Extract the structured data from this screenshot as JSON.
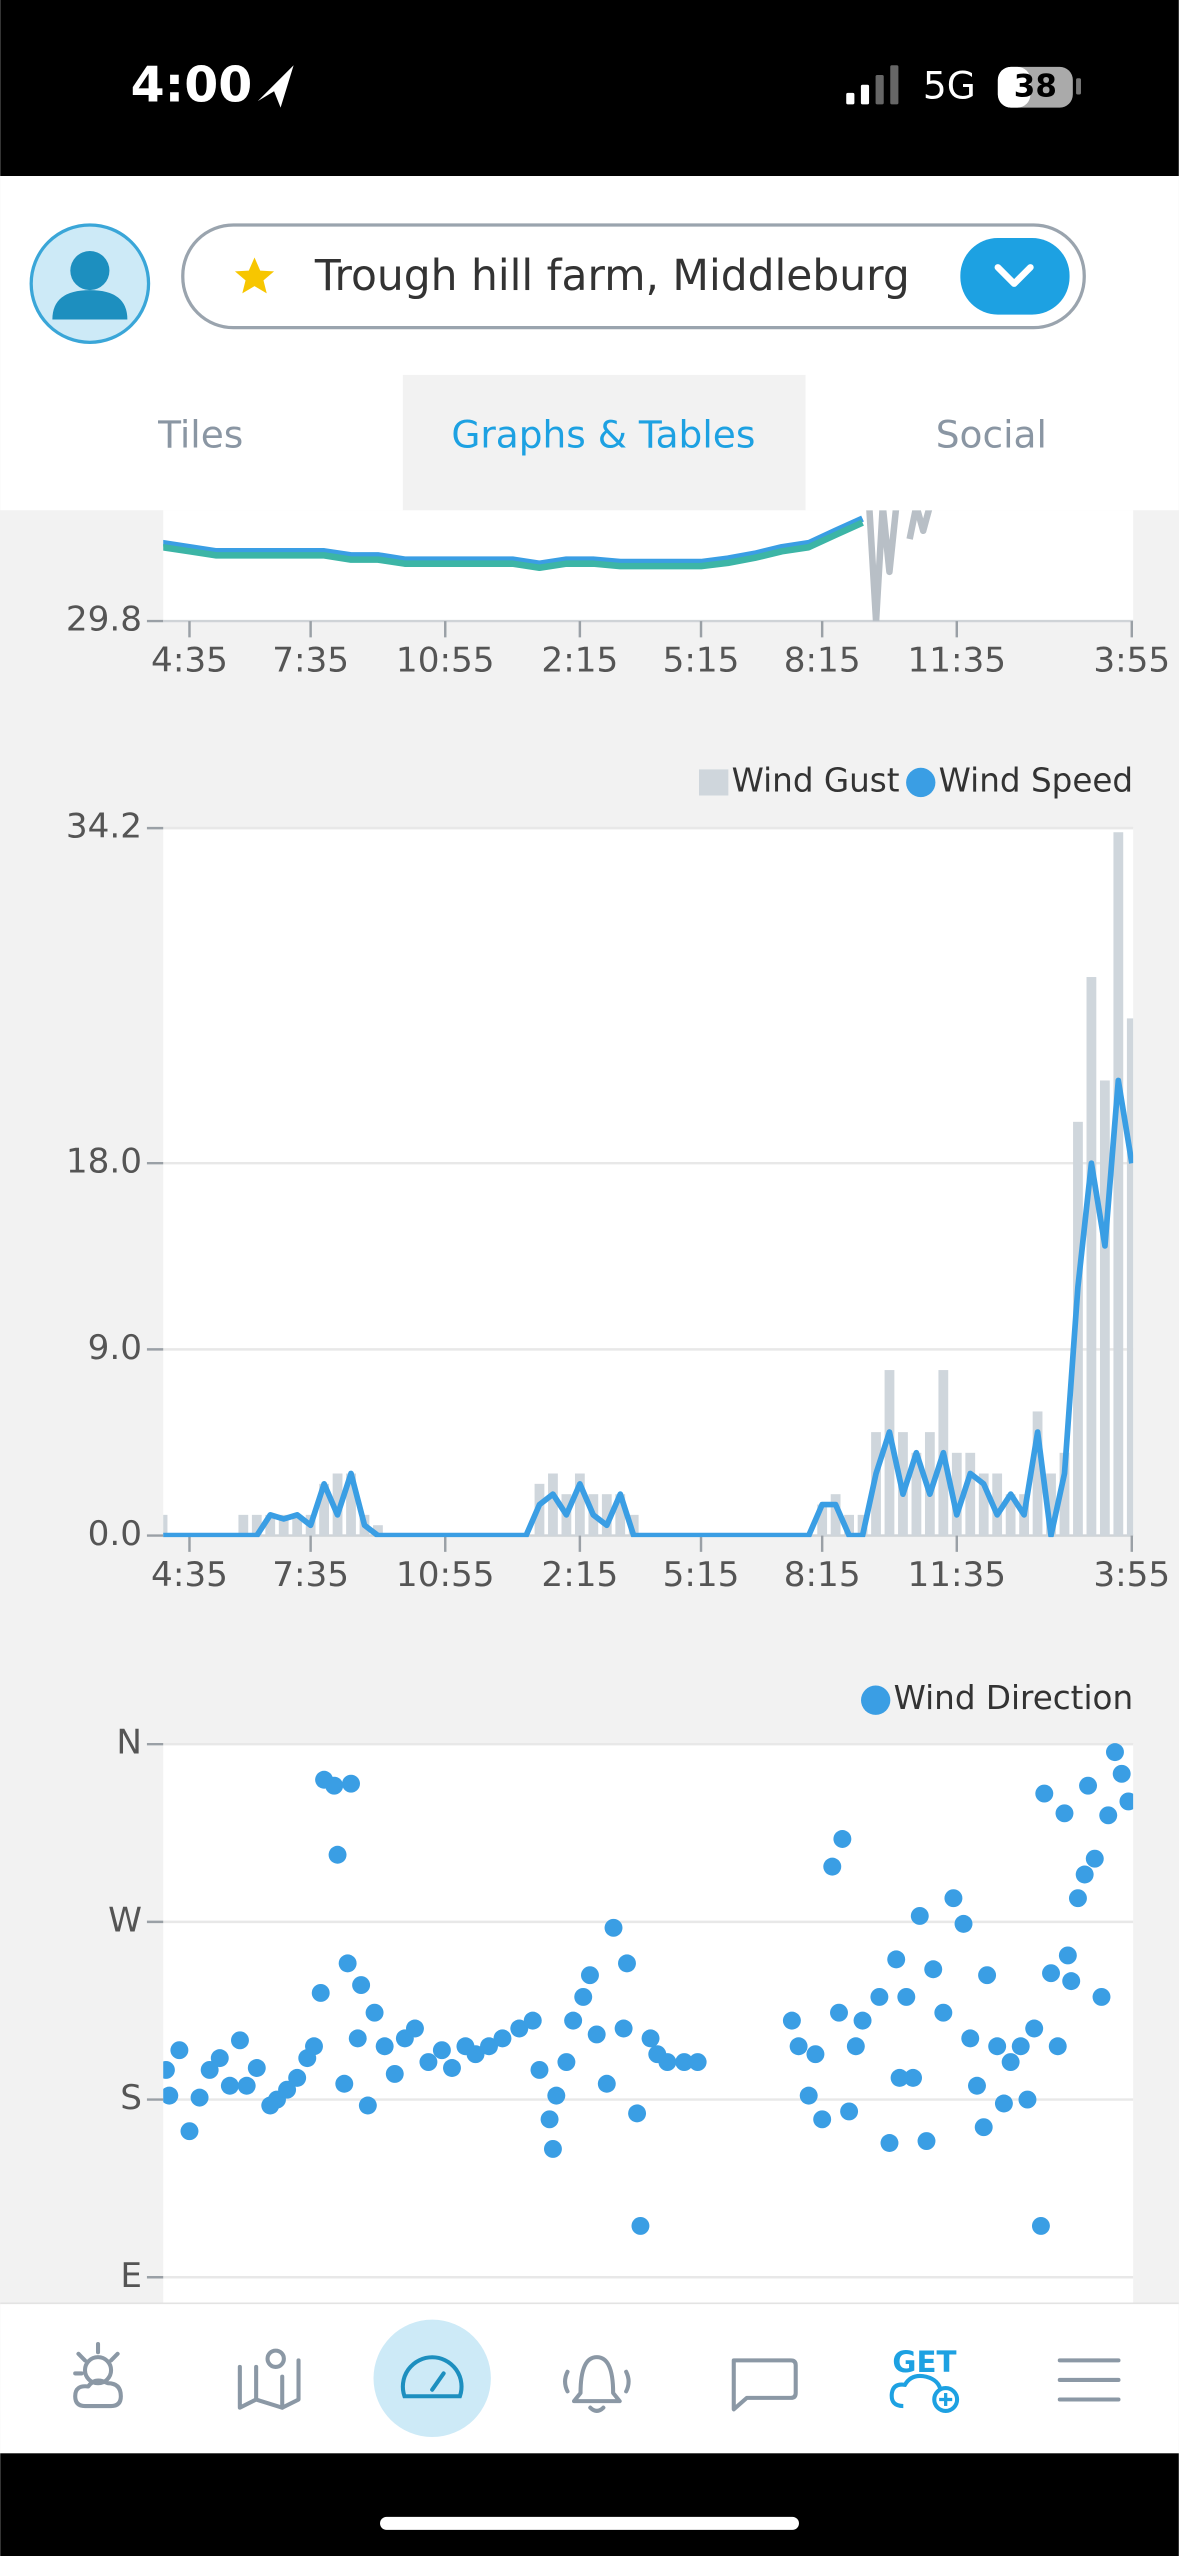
{
  "status_bar": {
    "time": "4:00",
    "network": "5G",
    "battery": "38"
  },
  "header": {
    "location": "Trough hill farm, Middleburg"
  },
  "tabs": [
    "Tiles",
    "Graphs & Tables",
    "Social"
  ],
  "nav": {
    "get_label": "GET"
  },
  "chart_data": [
    {
      "type": "line",
      "xlim": [
        -39,
        1402
      ],
      "ylim": [
        29.8,
        30.1
      ],
      "grid": false,
      "xticks": [
        {
          "value": 0,
          "label": "4:35"
        },
        {
          "value": 180,
          "label": "7:35"
        },
        {
          "value": 380,
          "label": "10:55"
        },
        {
          "value": 580,
          "label": "2:15"
        },
        {
          "value": 760,
          "label": "5:15"
        },
        {
          "value": 940,
          "label": "8:15"
        },
        {
          "value": 1140,
          "label": "11:35"
        },
        {
          "value": 1400,
          "label": "3:55"
        }
      ],
      "yticks": [
        29.8
      ],
      "x": [
        -40,
        0,
        40,
        80,
        120,
        160,
        200,
        240,
        280,
        320,
        360,
        400,
        440,
        480,
        520,
        560,
        600,
        640,
        680,
        720,
        760,
        800,
        840,
        880,
        920,
        960,
        1000
      ],
      "series": [
        {
          "color": "#3a9ee4",
          "values": [
            29.895,
            29.89,
            29.885,
            29.885,
            29.885,
            29.885,
            29.885,
            29.88,
            29.88,
            29.875,
            29.875,
            29.875,
            29.875,
            29.875,
            29.87,
            29.875,
            29.875,
            29.872,
            29.872,
            29.872,
            29.872,
            29.876,
            29.882,
            29.89,
            29.895,
            29.91,
            29.925
          ]
        },
        {
          "color": "#3cb5a6",
          "values": [
            29.89,
            29.885,
            29.88,
            29.88,
            29.88,
            29.88,
            29.88,
            29.875,
            29.875,
            29.87,
            29.87,
            29.87,
            29.87,
            29.87,
            29.865,
            29.87,
            29.87,
            29.867,
            29.867,
            29.867,
            29.867,
            29.871,
            29.877,
            29.885,
            29.89,
            29.905,
            29.92
          ]
        },
        {
          "color": "#b8bfc6",
          "x": [
            1010,
            1020,
            1030,
            1040,
            1050,
            1060,
            1070,
            1080,
            1090,
            1100
          ],
          "values": [
            29.94,
            29.8,
            29.94,
            29.86,
            29.94,
            null,
            29.9,
            29.94,
            29.91,
            29.94
          ]
        }
      ]
    },
    {
      "type": "line",
      "xlim": [
        -39,
        1402
      ],
      "ylim": [
        0,
        34.2
      ],
      "grid": true,
      "legend": "top-right",
      "xticks": [
        {
          "value": 0,
          "label": "4:35"
        },
        {
          "value": 180,
          "label": "7:35"
        },
        {
          "value": 380,
          "label": "10:55"
        },
        {
          "value": 580,
          "label": "2:15"
        },
        {
          "value": 760,
          "label": "5:15"
        },
        {
          "value": 940,
          "label": "8:15"
        },
        {
          "value": 1140,
          "label": "11:35"
        },
        {
          "value": 1400,
          "label": "3:55"
        }
      ],
      "yticks": [
        {
          "value": 0,
          "label": "0.0"
        },
        {
          "value": 9,
          "label": "9.0"
        },
        {
          "value": 18,
          "label": "18.0"
        },
        {
          "value": 34.2,
          "label": "34.2"
        }
      ],
      "x": [
        -40,
        -20,
        0,
        20,
        40,
        60,
        80,
        100,
        120,
        140,
        160,
        180,
        200,
        220,
        240,
        260,
        280,
        300,
        320,
        340,
        360,
        380,
        400,
        420,
        440,
        460,
        480,
        500,
        520,
        540,
        560,
        580,
        600,
        620,
        640,
        660,
        680,
        700,
        720,
        740,
        760,
        780,
        800,
        820,
        840,
        860,
        880,
        900,
        920,
        940,
        960,
        980,
        1000,
        1020,
        1040,
        1060,
        1080,
        1100,
        1120,
        1140,
        1160,
        1180,
        1200,
        1220,
        1240,
        1260,
        1280,
        1300,
        1320,
        1340,
        1360,
        1380,
        1400
      ],
      "series": [
        {
          "name": "Wind Gust",
          "type": "bar",
          "color": "#cfd6dc",
          "values": [
            1,
            0,
            0,
            0,
            0,
            0,
            1,
            1,
            1,
            1,
            1,
            1,
            2.5,
            3,
            3,
            1,
            0.5,
            0,
            0,
            0,
            0,
            0,
            0,
            0,
            0,
            0,
            0,
            0,
            2.5,
            3,
            2,
            3,
            2,
            2,
            2,
            1,
            0,
            0,
            0,
            0,
            0,
            0,
            0,
            0,
            0,
            0,
            0,
            0,
            0,
            1.5,
            2,
            1,
            1,
            5,
            8,
            5,
            4,
            5,
            8,
            4,
            4,
            3,
            3,
            2,
            2,
            6,
            3,
            4,
            20,
            27,
            22,
            34,
            25
          ]
        },
        {
          "name": "Wind Speed",
          "color": "#3a9ee4",
          "values": [
            0,
            0,
            0,
            0,
            0,
            0,
            0,
            0,
            1,
            0.8,
            1,
            0.5,
            2.5,
            1,
            3,
            0.5,
            0,
            0,
            0,
            0,
            0,
            0,
            0,
            0,
            0,
            0,
            0,
            0,
            1.5,
            2,
            1,
            2.5,
            1,
            0.5,
            2,
            0,
            0,
            0,
            0,
            0,
            0,
            0,
            0,
            0,
            0,
            0,
            0,
            0,
            0,
            1.5,
            1.5,
            0,
            0,
            3,
            5,
            2,
            4,
            2,
            4,
            1,
            3,
            2.5,
            1,
            2,
            1,
            5,
            0,
            3,
            12,
            18,
            14,
            22,
            18
          ]
        }
      ]
    },
    {
      "type": "scatter",
      "xlim": [
        -39,
        1402
      ],
      "ylim": [
        90,
        360
      ],
      "grid": true,
      "legend": "top-right",
      "yticks": [
        {
          "value": 360,
          "label": "N"
        },
        {
          "value": 270,
          "label": "W"
        },
        {
          "value": 180,
          "label": "S"
        },
        {
          "value": 90,
          "label": "E"
        }
      ],
      "series": [
        {
          "name": "Wind Direction",
          "color": "#3a9ee4",
          "x": [
            -35,
            -30,
            -15,
            0,
            15,
            30,
            45,
            60,
            75,
            85,
            100,
            120,
            130,
            145,
            160,
            175,
            185,
            195,
            200,
            215,
            220,
            230,
            235,
            240,
            250,
            255,
            265,
            275,
            290,
            305,
            320,
            335,
            355,
            375,
            390,
            410,
            425,
            445,
            465,
            490,
            510,
            520,
            535,
            540,
            545,
            560,
            570,
            585,
            595,
            605,
            620,
            630,
            645,
            650,
            665,
            670,
            685,
            695,
            710,
            735,
            755,
            895,
            905,
            920,
            930,
            940,
            955,
            965,
            970,
            980,
            990,
            1000,
            1025,
            1040,
            1050,
            1055,
            1065,
            1075,
            1085,
            1095,
            1105,
            1120,
            1135,
            1150,
            1160,
            1170,
            1180,
            1185,
            1200,
            1210,
            1220,
            1235,
            1245,
            1255,
            1265,
            1270,
            1280,
            1290,
            1300,
            1305,
            1310,
            1320,
            1330,
            1335,
            1345,
            1355,
            1365,
            1375,
            1385,
            1395
          ],
          "values": [
            195,
            182,
            205,
            164,
            181,
            195,
            201,
            187,
            210,
            187,
            196,
            177,
            180,
            185,
            191,
            201,
            207,
            234,
            342,
            339,
            304,
            188,
            249,
            340,
            211,
            238,
            177,
            224,
            207,
            193,
            211,
            216,
            199,
            205,
            196,
            207,
            203,
            207,
            211,
            216,
            220,
            195,
            170,
            155,
            182,
            199,
            220,
            232,
            243,
            213,
            188,
            267,
            216,
            249,
            173,
            116,
            211,
            203,
            199,
            199,
            199,
            220,
            207,
            182,
            203,
            170,
            298,
            224,
            312,
            174,
            207,
            220,
            232,
            158,
            251,
            191,
            232,
            191,
            273,
            159,
            246,
            224,
            282,
            269,
            211,
            187,
            166,
            243,
            207,
            178,
            199,
            207,
            180,
            216,
            116,
            335,
            244,
            207,
            325,
            253,
            240,
            282,
            294,
            339,
            302,
            232,
            324,
            356,
            345,
            331
          ]
        }
      ]
    }
  ]
}
